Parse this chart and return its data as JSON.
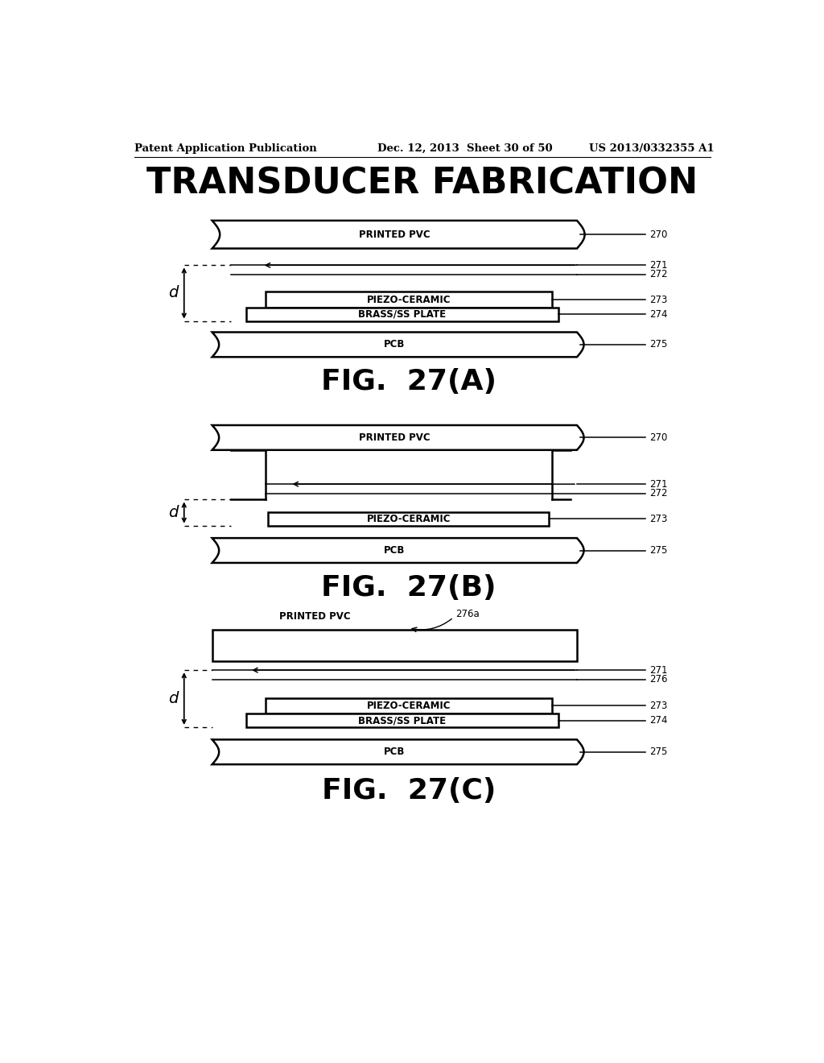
{
  "bg_color": "#ffffff",
  "header_left": "Patent Application Publication",
  "header_center": "Dec. 12, 2013  Sheet 30 of 50",
  "header_right": "US 2013/0332355 A1",
  "main_title": "TRANSDUCER FABRICATION",
  "fig_a_label": "FIG.  27(A)",
  "fig_b_label": "FIG.  27(B)",
  "fig_c_label": "FIG.  27(C)",
  "lw_main": 1.8,
  "lw_thin": 1.1,
  "fs_label": 8.5,
  "fs_ref": 8.5,
  "fs_fig": 26,
  "fs_title": 32,
  "fs_header": 9.5,
  "fs_d": 14,
  "black": "#000000"
}
